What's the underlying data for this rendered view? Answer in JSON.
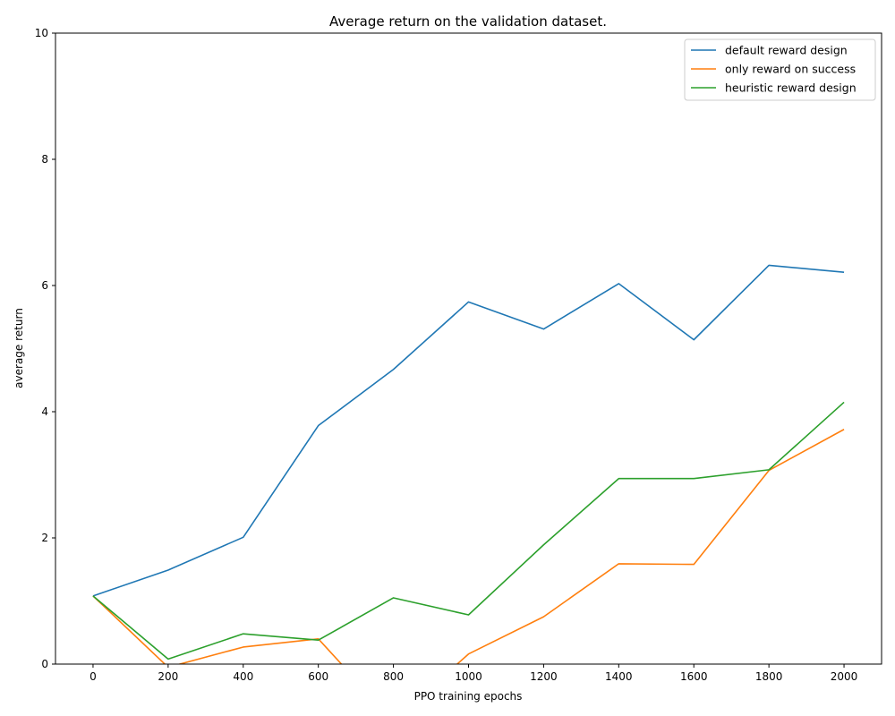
{
  "chart_data": {
    "type": "line",
    "title": "Average return on the validation dataset.",
    "xlabel": "PPO training epochs",
    "ylabel": "average return",
    "x": [
      0,
      200,
      400,
      600,
      800,
      1000,
      1200,
      1400,
      1600,
      1800,
      2000
    ],
    "xticks": [
      0,
      200,
      400,
      600,
      800,
      1000,
      1200,
      1400,
      1600,
      1800,
      2000
    ],
    "yticks": [
      0,
      2,
      4,
      6,
      8,
      10
    ],
    "xlim": [
      -100,
      2100
    ],
    "ylim": [
      0,
      10
    ],
    "grid": false,
    "legend_position": "upper-right",
    "series": [
      {
        "name": "default reward design",
        "color": "#1f77b4",
        "values": [
          1.08,
          1.49,
          2.01,
          3.78,
          4.67,
          5.74,
          5.31,
          6.03,
          5.14,
          6.32,
          6.21
        ]
      },
      {
        "name": "only reward on success",
        "color": "#ff7f0e",
        "values": [
          1.08,
          -0.05,
          0.27,
          0.4,
          -0.9,
          0.16,
          0.75,
          1.59,
          1.58,
          3.07,
          3.72
        ]
      },
      {
        "name": "heuristic reward design",
        "color": "#2ca02c",
        "values": [
          1.08,
          0.08,
          0.48,
          0.38,
          1.05,
          0.78,
          1.89,
          2.94,
          2.94,
          3.08,
          4.15
        ]
      }
    ]
  }
}
